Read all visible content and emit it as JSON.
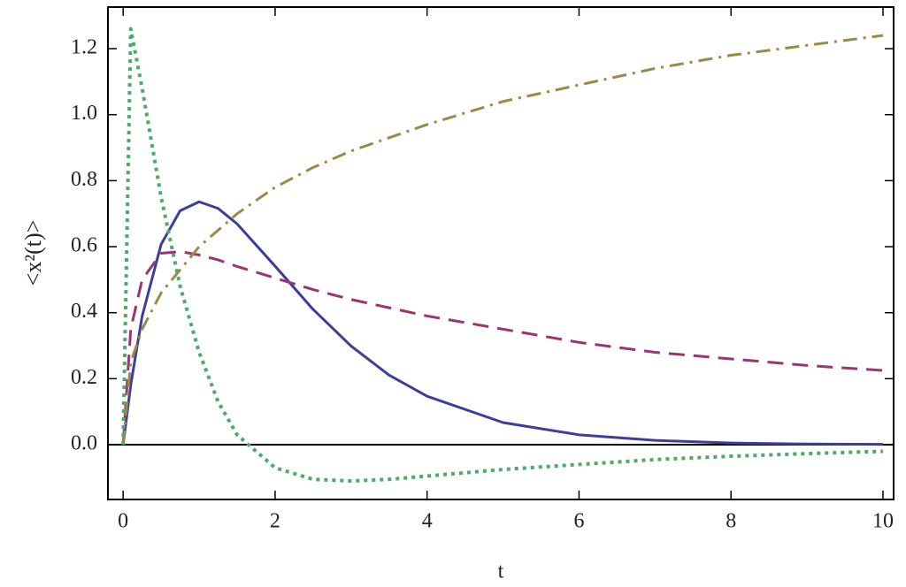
{
  "chart_data": {
    "type": "line",
    "xlabel": "t",
    "ylabel": "<x²(t)>",
    "x": [
      0,
      0.1,
      0.25,
      0.5,
      0.75,
      1,
      1.25,
      1.5,
      2,
      2.5,
      3,
      3.5,
      4,
      5,
      6,
      7,
      8,
      9,
      10
    ],
    "series": [
      {
        "color": "#3d3d9c",
        "dash": "solid",
        "values": [
          0,
          0.181,
          0.389,
          0.607,
          0.709,
          0.736,
          0.716,
          0.669,
          0.541,
          0.41,
          0.299,
          0.211,
          0.147,
          0.067,
          0.03,
          0.013,
          0.005,
          0.002,
          0.001
        ]
      },
      {
        "color": "#9b3474",
        "dash": "dashed",
        "values": [
          0,
          0.35,
          0.5,
          0.58,
          0.585,
          0.575,
          0.56,
          0.54,
          0.505,
          0.47,
          0.44,
          0.415,
          0.39,
          0.35,
          0.31,
          0.28,
          0.26,
          0.24,
          0.225
        ]
      },
      {
        "color": "#9a8a48",
        "dash": "dashdot",
        "values": [
          0,
          0.25,
          0.35,
          0.46,
          0.53,
          0.6,
          0.65,
          0.7,
          0.78,
          0.84,
          0.89,
          0.93,
          0.97,
          1.04,
          1.09,
          1.14,
          1.18,
          1.21,
          1.24
        ]
      },
      {
        "color": "#4dab68",
        "dash": "dotted",
        "values": [
          0,
          1.26,
          1.08,
          0.75,
          0.48,
          0.28,
          0.13,
          0.03,
          -0.07,
          -0.105,
          -0.11,
          -0.105,
          -0.095,
          -0.075,
          -0.06,
          -0.045,
          -0.035,
          -0.027,
          -0.02
        ]
      }
    ],
    "xlim": [
      -0.2,
      10.14
    ],
    "ylim": [
      -0.166,
      1.326
    ],
    "xticks": [
      0,
      2,
      4,
      6,
      8,
      10
    ],
    "yticks": [
      {
        "value": 0,
        "label": "0.0"
      },
      0.2,
      0.4,
      0.6,
      0.8,
      {
        "value": 1,
        "label": "1.0"
      },
      1.2
    ],
    "grid": false
  }
}
